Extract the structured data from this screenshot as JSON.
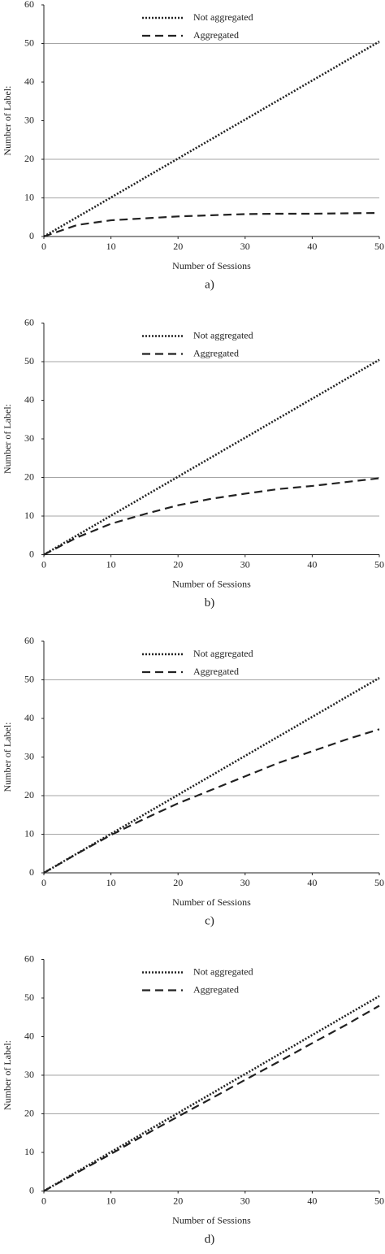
{
  "chart_data": [
    {
      "type": "line",
      "caption": "a)",
      "xlabel": "Number of Sessions",
      "ylabel": "Number of Label:",
      "x": [
        0,
        5,
        10,
        15,
        20,
        25,
        30,
        35,
        40,
        45,
        50
      ],
      "series": [
        {
          "name": "Not aggregated",
          "color": "#222222",
          "dash": "dotted",
          "values": [
            0,
            5.05,
            10.1,
            15.15,
            20.2,
            25.25,
            30.3,
            35.35,
            40.4,
            45.45,
            50.5
          ]
        },
        {
          "name": "Aggregated",
          "color": "#222222",
          "dash": "dashed",
          "values": [
            0,
            3,
            4.2,
            4.7,
            5.2,
            5.5,
            5.8,
            5.9,
            5.9,
            6,
            6.1
          ]
        }
      ],
      "xlim": [
        0,
        50
      ],
      "ylim": [
        0,
        60
      ],
      "xticks": [
        0,
        10,
        20,
        30,
        40,
        50
      ],
      "yticks": [
        0,
        10,
        20,
        30,
        40,
        50,
        60
      ],
      "grid_y": [
        10,
        20,
        50
      ]
    },
    {
      "type": "line",
      "caption": "b)",
      "xlabel": "Number of Sessions",
      "ylabel": "Number of Label:",
      "x": [
        0,
        5,
        10,
        15,
        20,
        25,
        30,
        35,
        40,
        45,
        50
      ],
      "series": [
        {
          "name": "Not aggregated",
          "color": "#222222",
          "dash": "dotted",
          "values": [
            0,
            5.05,
            10.1,
            15.15,
            20.2,
            25.25,
            30.3,
            35.35,
            40.4,
            45.45,
            50.5
          ]
        },
        {
          "name": "Aggregated",
          "color": "#222222",
          "dash": "dashed",
          "values": [
            0,
            4.5,
            8,
            10.5,
            12.8,
            14.5,
            15.8,
            17,
            17.8,
            18.8,
            19.8
          ]
        }
      ],
      "xlim": [
        0,
        50
      ],
      "ylim": [
        0,
        60
      ],
      "xticks": [
        0,
        10,
        20,
        30,
        40,
        50
      ],
      "yticks": [
        0,
        10,
        20,
        30,
        40,
        50,
        60
      ],
      "grid_y": [
        10,
        20,
        50
      ]
    },
    {
      "type": "line",
      "caption": "c)",
      "xlabel": "Number of Sessions",
      "ylabel": "Number of Label:",
      "x": [
        0,
        5,
        10,
        15,
        20,
        25,
        30,
        35,
        40,
        45,
        50
      ],
      "series": [
        {
          "name": "Not aggregated",
          "color": "#222222",
          "dash": "dotted",
          "values": [
            0,
            5.05,
            10.1,
            15.15,
            20.2,
            25.25,
            30.3,
            35.35,
            40.4,
            45.45,
            50.5
          ]
        },
        {
          "name": "Aggregated",
          "color": "#222222",
          "dash": "dashed",
          "values": [
            0,
            5,
            9.8,
            14,
            18,
            21.5,
            25,
            28.5,
            31.5,
            34.5,
            37.2
          ]
        }
      ],
      "xlim": [
        0,
        50
      ],
      "ylim": [
        0,
        60
      ],
      "xticks": [
        0,
        10,
        20,
        30,
        40,
        50
      ],
      "yticks": [
        0,
        10,
        20,
        30,
        40,
        50,
        60
      ],
      "grid_y": [
        10,
        20,
        50
      ]
    },
    {
      "type": "line",
      "caption": "d)",
      "xlabel": "Number of Sessions",
      "ylabel": "Number of Label:",
      "x": [
        0,
        5,
        10,
        15,
        20,
        25,
        30,
        35,
        40,
        45,
        50
      ],
      "series": [
        {
          "name": "Not aggregated",
          "color": "#222222",
          "dash": "dotted",
          "values": [
            0,
            5.05,
            10.1,
            15.15,
            20.2,
            25.25,
            30.3,
            35.35,
            40.4,
            45.45,
            50.5
          ]
        },
        {
          "name": "Aggregated",
          "color": "#222222",
          "dash": "dashed",
          "values": [
            0,
            4.8,
            9.6,
            14.5,
            19.3,
            24,
            28.8,
            33.5,
            38.3,
            43,
            48
          ]
        }
      ],
      "xlim": [
        0,
        50
      ],
      "ylim": [
        0,
        60
      ],
      "xticks": [
        0,
        10,
        20,
        30,
        40,
        50
      ],
      "yticks": [
        0,
        10,
        20,
        30,
        40,
        50,
        60
      ],
      "grid_y": [
        20,
        30
      ]
    }
  ]
}
